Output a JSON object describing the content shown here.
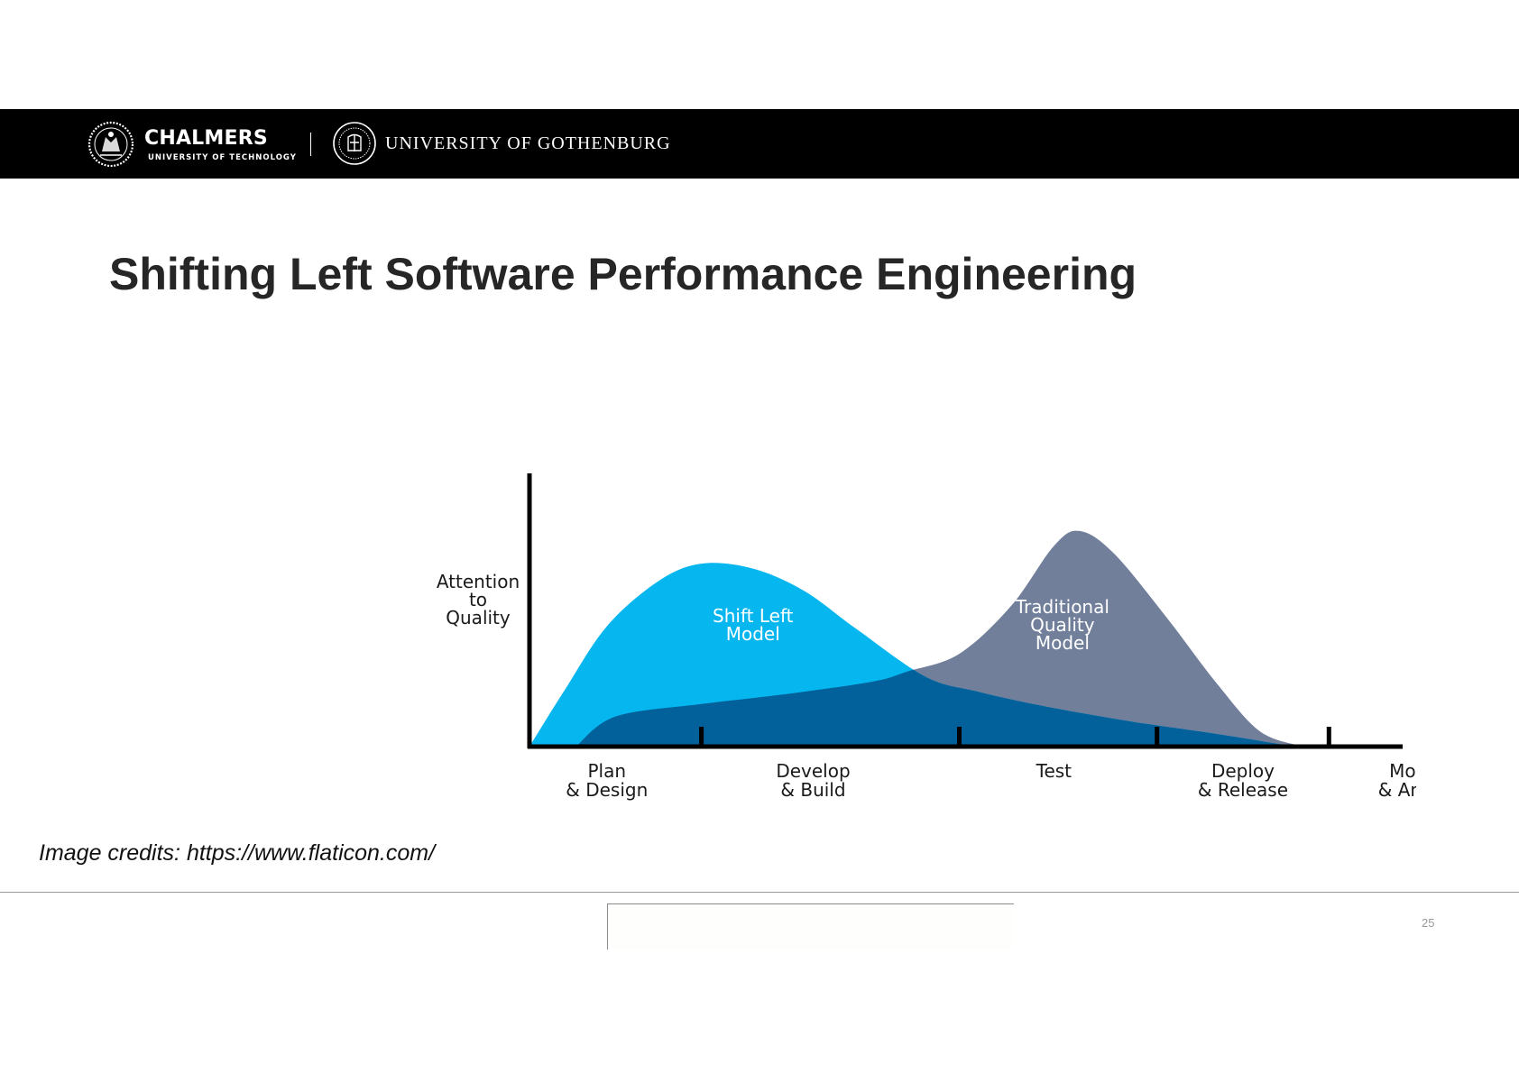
{
  "header": {
    "chalmers_name": "CHALMERS",
    "chalmers_subtitle": "UNIVERSITY OF TECHNOLOGY",
    "gu_name": "UNIVERSITY OF GOTHENBURG",
    "background_color": "#000000",
    "text_color": "#ffffff"
  },
  "slide": {
    "title": "Shifting Left Software Performance Engineering",
    "credits": "Image credits: https://www.flaticon.com/",
    "page_number": "25"
  },
  "chart_data": {
    "type": "area",
    "title": "",
    "ylabel_lines": [
      "Attention",
      "to",
      "Quality"
    ],
    "categories": [
      [
        "Plan",
        "& Design"
      ],
      [
        "Develop",
        "& Build"
      ],
      [
        "Test"
      ],
      [
        "Deploy",
        "& Release"
      ],
      [
        "Monitor",
        "& Analyze"
      ]
    ],
    "x_range": [
      0,
      5
    ],
    "y_range": [
      0,
      1
    ],
    "grid": false,
    "legend": "none",
    "series": [
      {
        "name": "Traditional Quality Model",
        "label_lines": [
          "Traditional",
          "Quality",
          "Model"
        ],
        "color": "#717f9b",
        "points": [
          [
            0.27,
            0.0
          ],
          [
            0.5,
            0.12
          ],
          [
            1.0,
            0.17
          ],
          [
            1.5,
            0.21
          ],
          [
            2.0,
            0.26
          ],
          [
            2.2,
            0.3
          ],
          [
            2.5,
            0.37
          ],
          [
            2.8,
            0.56
          ],
          [
            3.05,
            0.8
          ],
          [
            3.2,
            0.86
          ],
          [
            3.4,
            0.77
          ],
          [
            3.7,
            0.52
          ],
          [
            4.0,
            0.25
          ],
          [
            4.25,
            0.06
          ],
          [
            4.5,
            0.0
          ]
        ]
      },
      {
        "name": "Shift Left Model",
        "label_lines": [
          "Shift Left",
          "Model"
        ],
        "color": "#06b6ef",
        "points": [
          [
            0.0,
            0.0
          ],
          [
            0.2,
            0.22
          ],
          [
            0.45,
            0.48
          ],
          [
            0.75,
            0.66
          ],
          [
            1.0,
            0.73
          ],
          [
            1.3,
            0.71
          ],
          [
            1.6,
            0.62
          ],
          [
            1.9,
            0.47
          ],
          [
            2.3,
            0.28
          ],
          [
            2.6,
            0.22
          ],
          [
            3.0,
            0.16
          ],
          [
            3.5,
            0.1
          ],
          [
            4.0,
            0.05
          ],
          [
            4.45,
            0.0
          ]
        ]
      }
    ],
    "overlap_color": "#02609a"
  }
}
